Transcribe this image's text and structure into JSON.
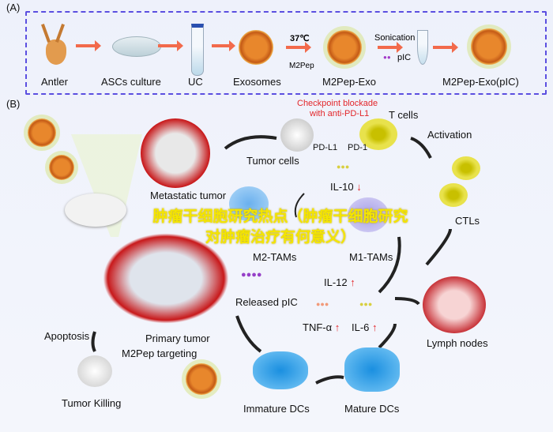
{
  "panel_a": {
    "label": "(A)",
    "steps": [
      "Antler",
      "ASCs culture",
      "UC",
      "Exosomes",
      "M2Pep-Exo",
      "M2Pep-Exo(pIC)"
    ],
    "temp": "37℃",
    "peptide": "M2Pep",
    "sonication": "Sonication",
    "cargo": "pIC"
  },
  "panel_b": {
    "label": "(B)",
    "checkpoint_line1": "Checkpoint blockade",
    "checkpoint_line2": "with anti-PD-L1",
    "t_cells": "T cells",
    "pd_l1": "PD-L1",
    "pd_1": "PD-1",
    "tumor_cells": "Tumor cells",
    "activation": "Activation",
    "metastatic_tumor": "Metastatic tumor",
    "il10": "IL-10",
    "m2_tams": "M2-TAMs",
    "m1_tams": "M1-TAMs",
    "ctls": "CTLs",
    "il12": "IL-12",
    "released_pic": "Released pIC",
    "tnf": "TNF-α",
    "il6": "IL-6",
    "primary_tumor": "Primary tumor",
    "m2pep_targeting": "M2Pep targeting",
    "apoptosis": "Apoptosis",
    "tumor_killing": "Tumor Killing",
    "immature_dcs": "Immature DCs",
    "mature_dcs": "Mature DCs",
    "lymph_nodes": "Lymph nodes",
    "up_arrow": "↑",
    "down_arrow": "↓"
  },
  "watermark": "肿瘤干细胞研究热点（肿瘤干细胞研究对肿瘤治疗有何意义）",
  "colors": {
    "arrow": "#f26a4b",
    "frame": "#5b4fe0",
    "checkpoint": "#e3262a",
    "watermark": "#f4e500"
  }
}
